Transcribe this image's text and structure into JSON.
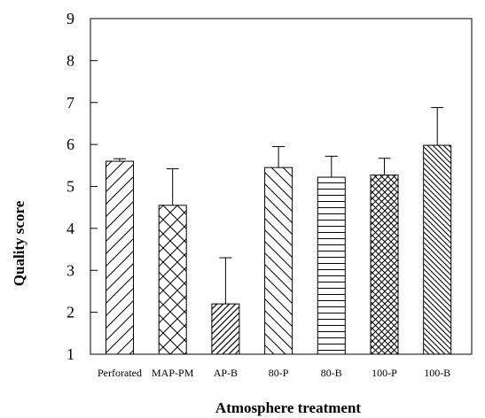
{
  "chart_data": {
    "type": "bar",
    "xlabel": "Atmosphere treatment",
    "ylabel": "Quality score",
    "ylim": [
      1,
      9
    ],
    "yticks": [
      "1",
      "2",
      "3",
      "4",
      "5",
      "6",
      "7",
      "8",
      "9"
    ],
    "grid": false,
    "categories": [
      "Perforated",
      "MAP-PM",
      "AP-B",
      "80-P",
      "80-B",
      "100-P",
      "100-B"
    ],
    "values": [
      5.6,
      4.55,
      2.2,
      5.45,
      5.22,
      5.27,
      5.98
    ],
    "error": [
      0.06,
      0.87,
      1.1,
      0.5,
      0.5,
      0.4,
      0.9
    ],
    "patterns": [
      "diagonal-forward-wide",
      "crosshatch-diagonal",
      "diagonal-forward-dense",
      "diagonal-back-wide",
      "horizontal-lines",
      "crosshatch-dense",
      "diagonal-back-dense"
    ],
    "colors": {
      "bar_fill": "#ffffff",
      "stroke": "#000000"
    }
  }
}
